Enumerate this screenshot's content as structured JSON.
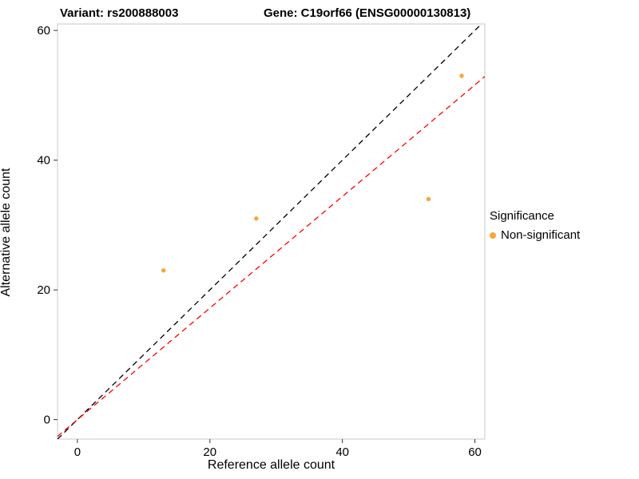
{
  "chart_data": {
    "type": "scatter",
    "title_left": "Variant: rs200888003",
    "title_right": "Gene: C19orf66 (ENSG00000130813)",
    "xlabel": "Reference allele count",
    "ylabel": "Alternative allele count",
    "xlim": [
      -3,
      61.5
    ],
    "ylim": [
      -3,
      61
    ],
    "xticks": [
      0,
      20,
      40,
      60
    ],
    "yticks": [
      0,
      20,
      40,
      60
    ],
    "grid": false,
    "panel_border_color": "#c9c9c9",
    "series": [
      {
        "name": "Non-significant",
        "color": "#FAA43A",
        "points": [
          [
            13,
            23
          ],
          [
            27,
            31
          ],
          [
            53,
            34
          ],
          [
            58,
            53
          ]
        ]
      }
    ],
    "lines": [
      {
        "name": "identity-line",
        "slope": 1,
        "intercept": 0,
        "color": "#000000",
        "style": "dashed"
      },
      {
        "name": "fit-line",
        "slope": 0.86,
        "intercept": 0,
        "color": "#FF0000",
        "style": "dashed"
      }
    ],
    "legend": {
      "title": "Significance",
      "position": "right",
      "items": [
        {
          "label": "Non-significant",
          "color": "#FAA43A"
        }
      ]
    }
  }
}
